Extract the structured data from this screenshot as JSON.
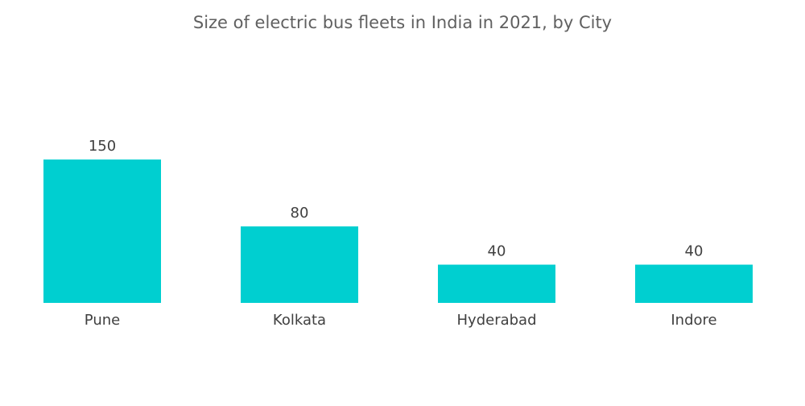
{
  "chart_data": {
    "type": "bar",
    "title": "Size of electric bus fleets in India in 2021, by City",
    "categories": [
      "Pune",
      "Kolkata",
      "Hyderabad",
      "Indore"
    ],
    "values": [
      150,
      80,
      40,
      40
    ],
    "xlabel": "",
    "ylabel": "",
    "ylim": [
      0,
      150
    ],
    "grid": false,
    "legend": "none",
    "colors": {
      "bar": "#00cfd0",
      "text": "#404040",
      "title": "#606060"
    }
  }
}
